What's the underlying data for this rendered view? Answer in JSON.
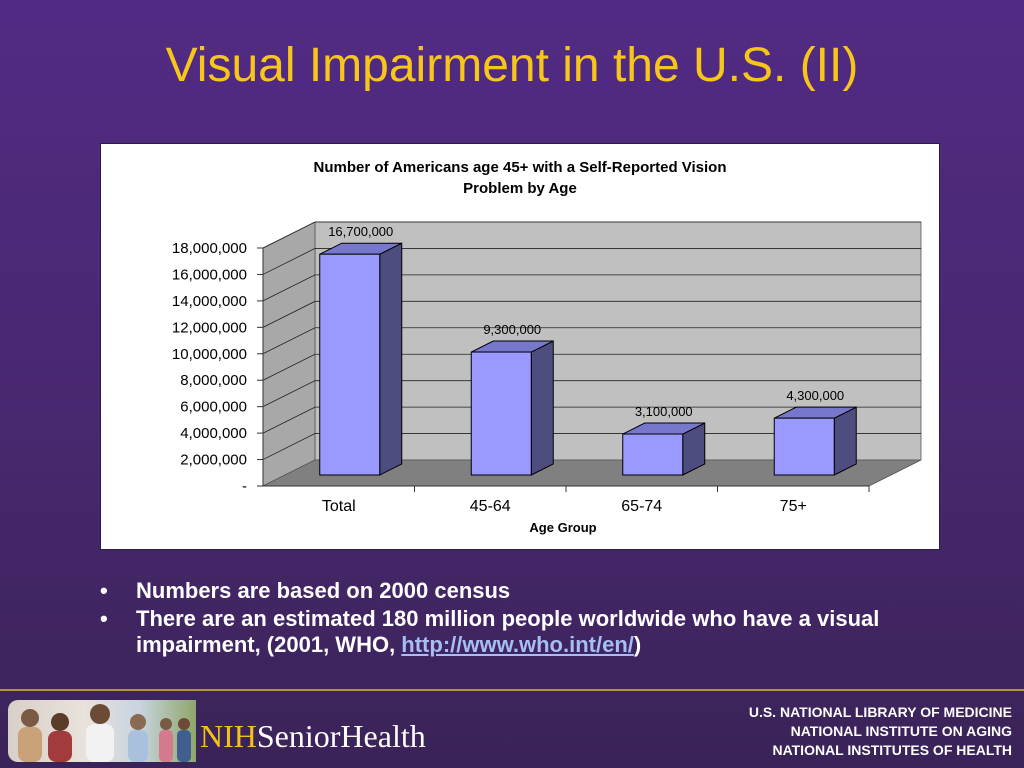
{
  "slide": {
    "title": "Visual Impairment in the U.S. (II)"
  },
  "chart_data": {
    "type": "bar",
    "title": "Number of Americans age 45+ with a Self-Reported Vision Problem by Age",
    "title_lines": [
      "Number of Americans age 45+ with a Self-Reported Vision",
      "Problem by Age"
    ],
    "xlabel": "Age Group",
    "ylabel": "",
    "categories": [
      "Total",
      "45-64",
      "65-74",
      "75+"
    ],
    "values": [
      16700000,
      9300000,
      3100000,
      4300000
    ],
    "value_labels": [
      "16,700,000",
      "9,300,000",
      "3,100,000",
      "4,300,000"
    ],
    "ylim": [
      0,
      18000000
    ],
    "yticks": [
      0,
      2000000,
      4000000,
      6000000,
      8000000,
      10000000,
      12000000,
      14000000,
      16000000,
      18000000
    ],
    "ytick_labels": [
      "-",
      "2,000,000",
      "4,000,000",
      "6,000,000",
      "8,000,000",
      "10,000,000",
      "12,000,000",
      "14,000,000",
      "16,000,000",
      "18,000,000"
    ],
    "grid": true,
    "legend": "none",
    "style": "3d",
    "colors": {
      "bar_front": "#9999ff",
      "bar_side": "#4d4d80",
      "bar_top": "#7777cc",
      "wall": "#c0c0c0",
      "floor": "#808080"
    }
  },
  "bullets": [
    {
      "text": "Numbers are based on 2000 census"
    },
    {
      "text": "There are an estimated 180 million people worldwide who have a visual impairment, (2001,  WHO, ",
      "link_text": "http://www.who.int/en/",
      "suffix": ")"
    }
  ],
  "bullet_glyph": "•",
  "footer": {
    "brand_nih": "NIH",
    "brand_rest": "SeniorHealth",
    "credits": [
      "U.S. NATIONAL LIBRARY OF MEDICINE",
      "NATIONAL INSTITUTE ON AGING",
      "NATIONAL INSTITUTES OF HEALTH"
    ]
  }
}
